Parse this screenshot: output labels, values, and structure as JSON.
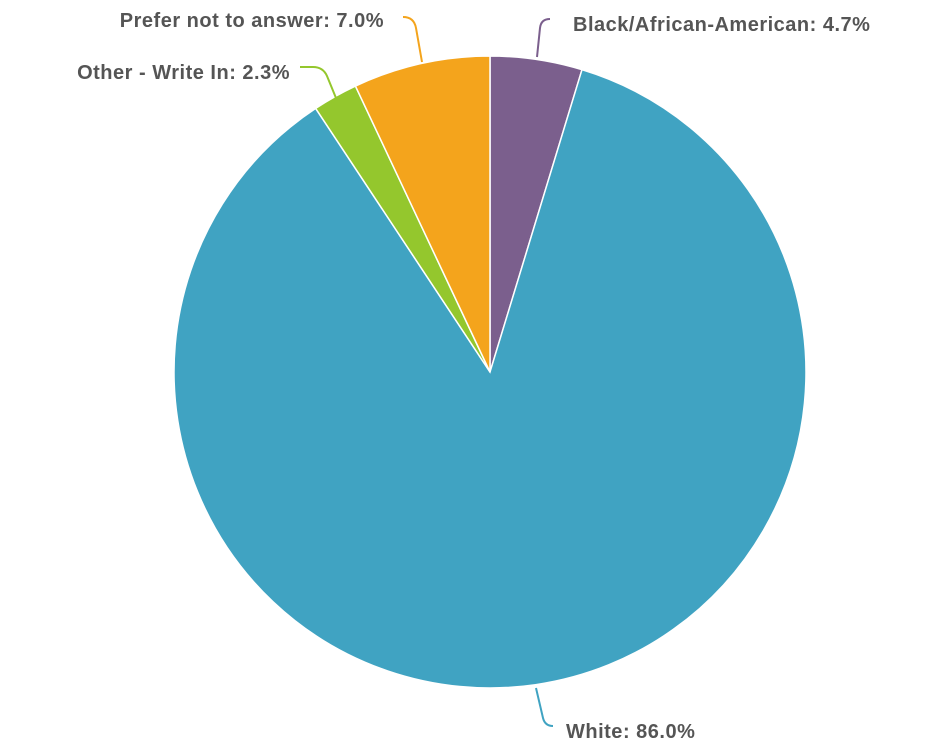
{
  "chart_data": {
    "type": "pie",
    "title": "",
    "start": "top",
    "direction": "clockwise",
    "slices": [
      {
        "label": "Black/African-American",
        "value": 4.7,
        "value_label": "4.7%",
        "color": "#7b5f8d"
      },
      {
        "label": "White",
        "value": 86.0,
        "value_label": "86.0%",
        "color": "#40a3c2"
      },
      {
        "label": "Other - Write In",
        "value": 2.3,
        "value_label": "2.3%",
        "color": "#94c72d"
      },
      {
        "label": "Prefer not to answer",
        "value": 7.0,
        "value_label": "7.0%",
        "color": "#f4a41c"
      }
    ]
  }
}
